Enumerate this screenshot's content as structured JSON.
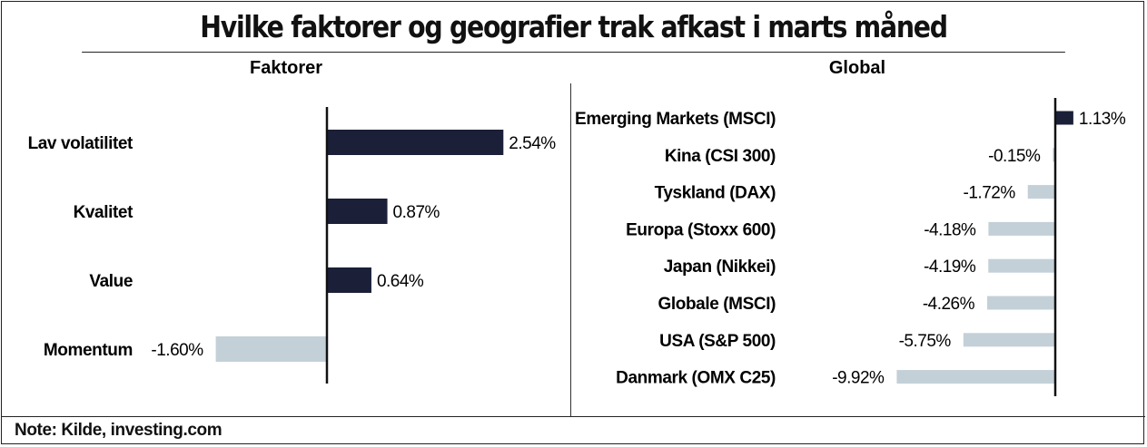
{
  "title": "Hvilke faktorer og geografier trak afkast i marts måned",
  "note": "Note: Kilde, investing.com",
  "colors": {
    "positive": "#1b2038",
    "negative": "#c3d0d7",
    "axis": "#111111"
  },
  "chart_data": [
    {
      "type": "bar",
      "orientation": "horizontal",
      "subtitle": "Faktorer",
      "categories": [
        "Lav volatilitet",
        "Kvalitet",
        "Value",
        "Momentum"
      ],
      "values": [
        2.54,
        0.87,
        0.64,
        -1.6
      ],
      "labels": [
        "2.54%",
        "0.87%",
        "0.64%",
        "-1.60%"
      ],
      "unit": "%"
    },
    {
      "type": "bar",
      "orientation": "horizontal",
      "subtitle": "Global",
      "categories": [
        "Emerging Markets (MSCI)",
        "Kina (CSI 300)",
        "Tyskland (DAX)",
        "Europa (Stoxx 600)",
        "Japan (Nikkei)",
        "Globale (MSCI)",
        "USA (S&P 500)",
        "Danmark (OMX C25)"
      ],
      "values": [
        1.13,
        -0.15,
        -1.72,
        -4.18,
        -4.19,
        -4.26,
        -5.75,
        -9.92
      ],
      "labels": [
        "1.13%",
        "-0.15%",
        "-1.72%",
        "-4.18%",
        "-4.19%",
        "-4.26%",
        "-5.75%",
        "-9.92%"
      ],
      "unit": "%"
    }
  ]
}
